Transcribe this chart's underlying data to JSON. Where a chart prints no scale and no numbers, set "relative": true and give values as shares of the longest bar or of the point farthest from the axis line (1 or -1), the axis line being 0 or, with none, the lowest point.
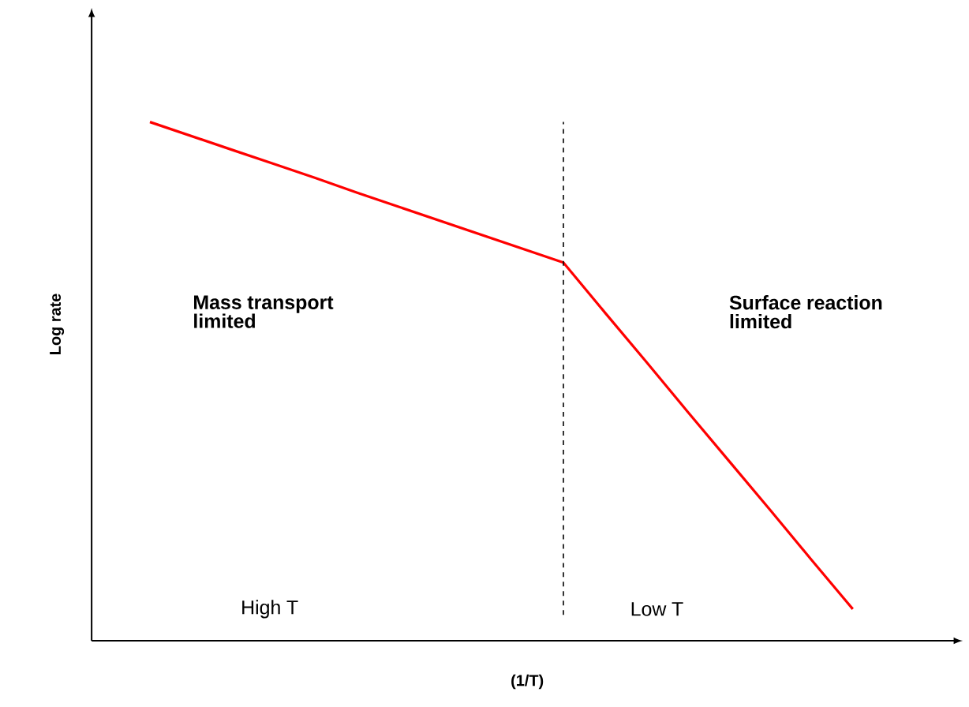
{
  "chart_data": {
    "type": "line",
    "relative": true,
    "xlabel": "(1/T)",
    "ylabel": "Log rate",
    "categories": [
      null,
      null,
      null,
      null,
      null,
      null,
      null,
      null,
      null,
      null,
      null,
      null,
      null,
      null,
      null,
      null,
      null,
      null
    ],
    "series": [
      {
        "color": "#ff0000",
        "values": [
          1,
          0.973,
          0.946,
          0.919,
          0.892,
          0.864,
          0.837,
          0.81,
          0.783,
          0.756,
          0.729,
          0.633,
          0.538,
          0.442,
          0.347,
          0.252,
          0.156,
          0.061
        ]
      }
    ],
    "marker": "none",
    "line_style": "solid",
    "ref_lines": [
      {
        "axis": "x",
        "value": null,
        "color": "#000000",
        "line_style": "dashed"
      }
    ],
    "annotations": [
      "**Mass transport limited**",
      "**Surface reaction limited**",
      "High T",
      "Low T"
    ]
  }
}
